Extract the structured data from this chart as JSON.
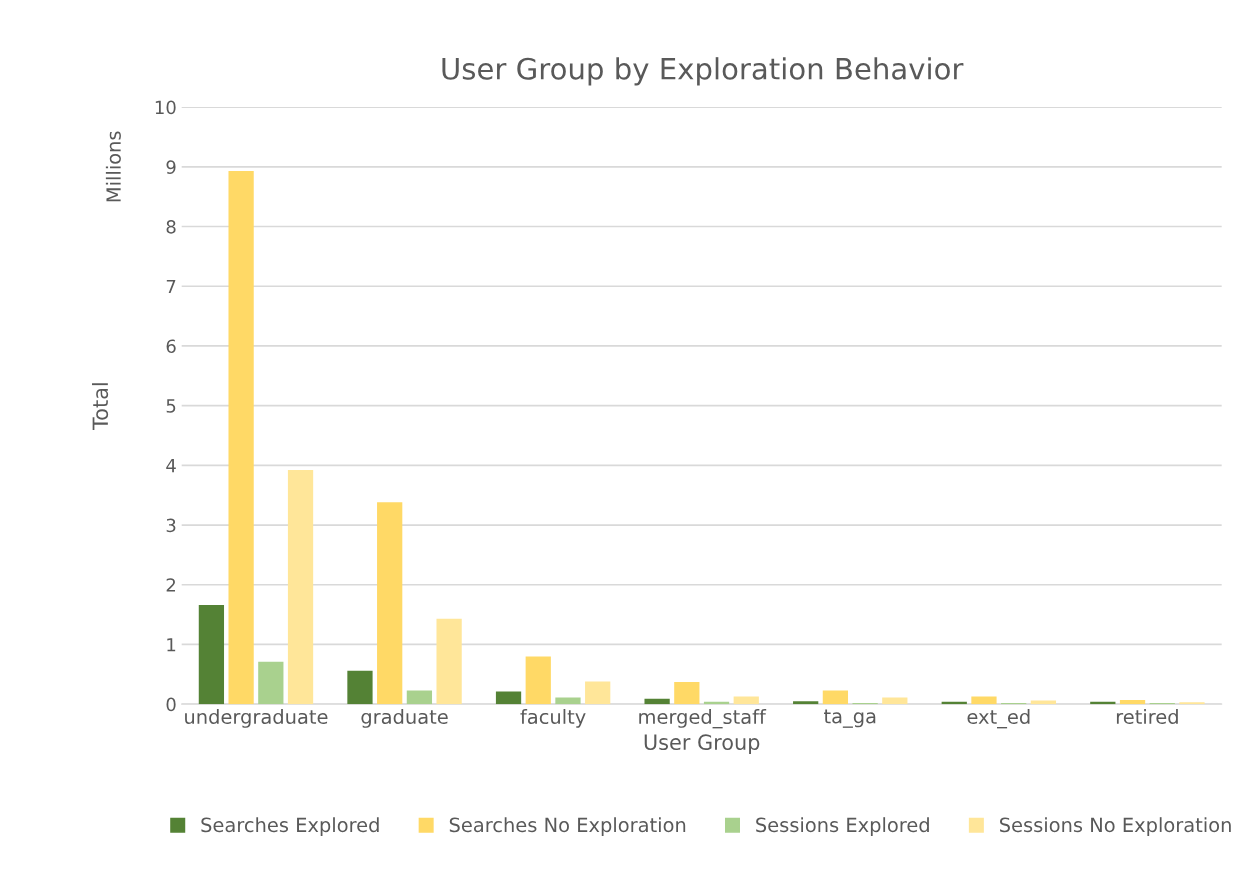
{
  "chart_data": {
    "type": "bar",
    "title": "User Group by Exploration Behavior",
    "xlabel": "User Group",
    "ylabel": "Total",
    "annotations": [
      "Millions"
    ],
    "categories": [
      "undergraduate",
      "graduate",
      "faculty",
      "merged_staff",
      "ta_ga",
      "ext_ed",
      "retired"
    ],
    "series": [
      {
        "name": "Searches Explored",
        "color": "#548235",
        "values": [
          1.66,
          0.56,
          0.21,
          0.09,
          0.05,
          0.04,
          0.04
        ]
      },
      {
        "name": "Searches No Exploration",
        "color": "#ffd966",
        "values": [
          8.93,
          3.38,
          0.8,
          0.37,
          0.23,
          0.13,
          0.07
        ]
      },
      {
        "name": "Sessions Explored",
        "color": "#a9d18e",
        "values": [
          0.71,
          0.23,
          0.11,
          0.04,
          0.02,
          0.02,
          0.02
        ]
      },
      {
        "name": "Sessions No Exploration",
        "color": "#ffe699",
        "values": [
          3.92,
          1.43,
          0.38,
          0.13,
          0.11,
          0.06,
          0.03
        ]
      }
    ],
    "ylim": [
      0,
      10
    ],
    "yticks": [
      0,
      1,
      2,
      3,
      4,
      5,
      6,
      7,
      8,
      9,
      10
    ],
    "grid": "y",
    "legend": "bottom"
  }
}
